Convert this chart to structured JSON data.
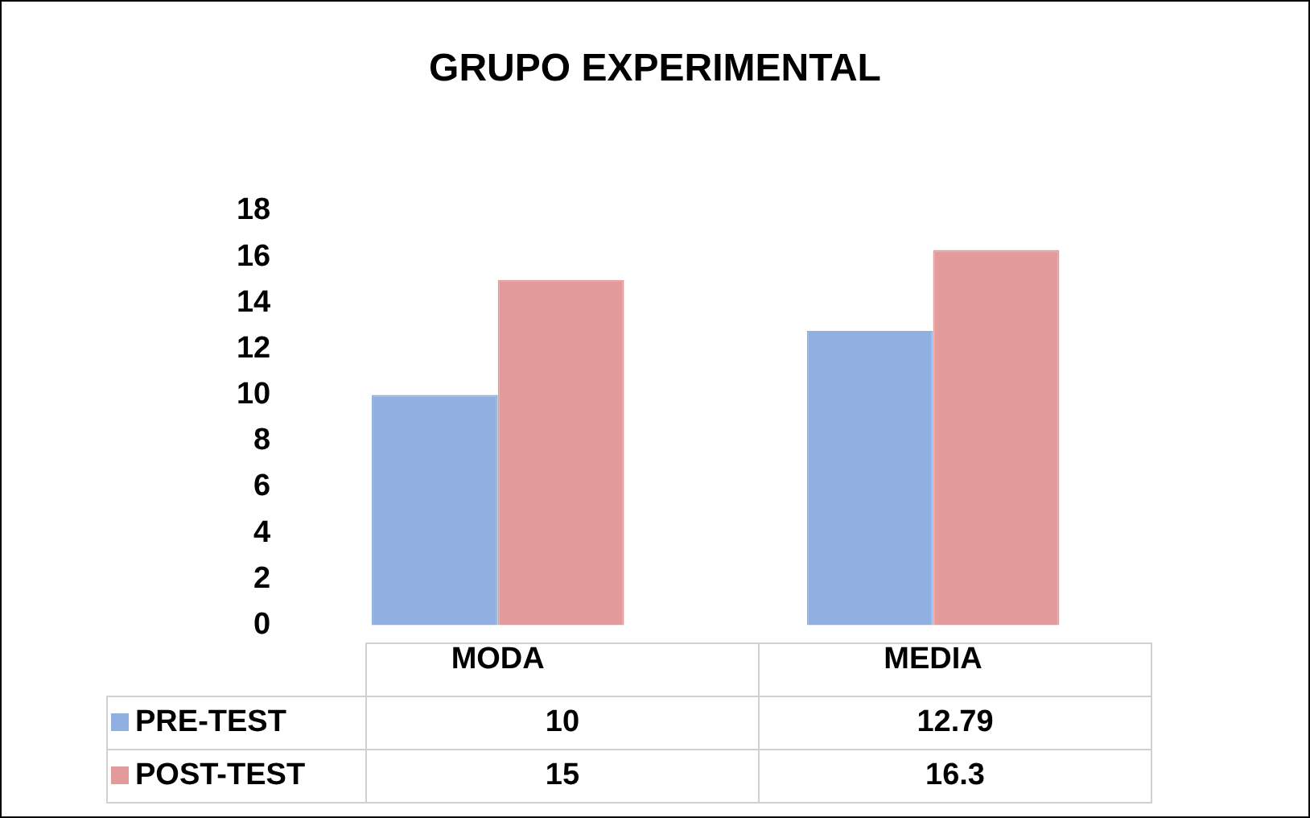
{
  "chart_data": {
    "type": "bar",
    "title": "GRUPO EXPERIMENTAL",
    "categories": [
      "MODA",
      "MEDIA"
    ],
    "series": [
      {
        "name": "PRE-TEST",
        "color": "#8fb0e0",
        "values": [
          10,
          12.79
        ]
      },
      {
        "name": "POST-TEST",
        "color": "#e39a9a",
        "values": [
          15,
          16.3
        ]
      }
    ],
    "ylim": [
      0,
      18
    ],
    "yticks": [
      0,
      2,
      4,
      6,
      8,
      10,
      12,
      14,
      16,
      18
    ],
    "grid": false,
    "legend": "bottom",
    "data_labels": true
  }
}
